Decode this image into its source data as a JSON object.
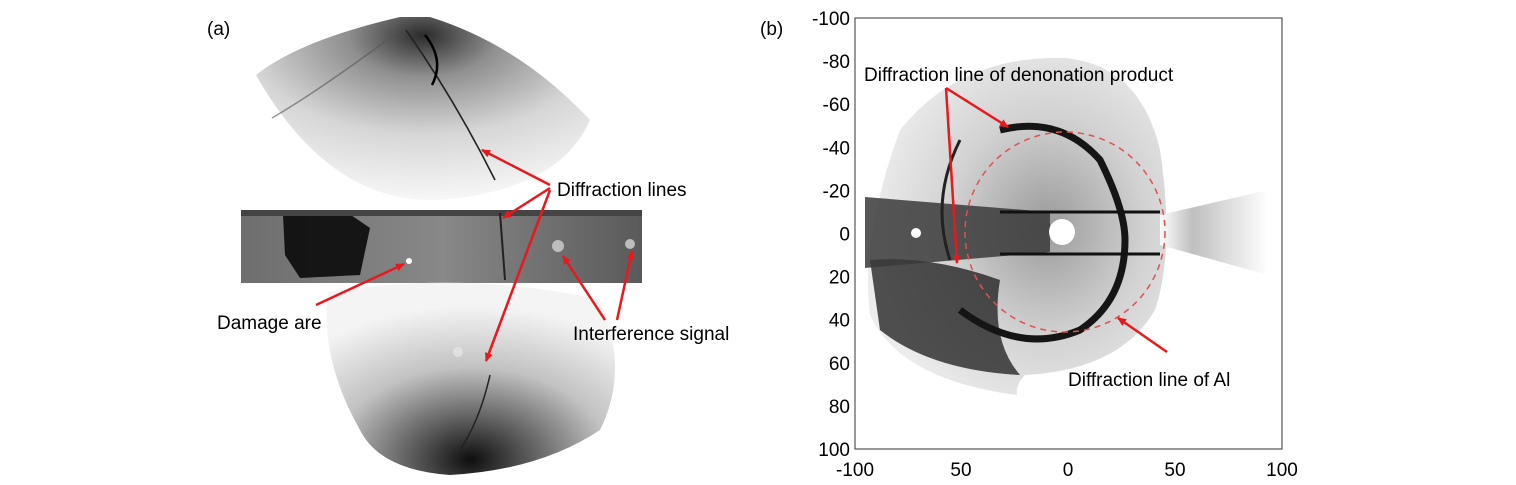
{
  "panel_a": {
    "label": "(a)",
    "annotations": {
      "diffraction_lines": "Diffraction lines",
      "damage": "Damage are",
      "interference": "Interference signal"
    }
  },
  "panel_b": {
    "label": "(b)",
    "annotations": {
      "denonation": "Diffraction line of denonation product",
      "al": "Diffraction line of Al"
    },
    "y_ticks": [
      "-100",
      "-80",
      "-60",
      "-40",
      "-20",
      "0",
      "20",
      "40",
      "60",
      "80",
      "100"
    ],
    "x_ticks": [
      "-100",
      "50",
      "0",
      "50",
      "100"
    ]
  },
  "colors": {
    "arrow": "#e8191c",
    "dashed_circle": "#e05050"
  }
}
